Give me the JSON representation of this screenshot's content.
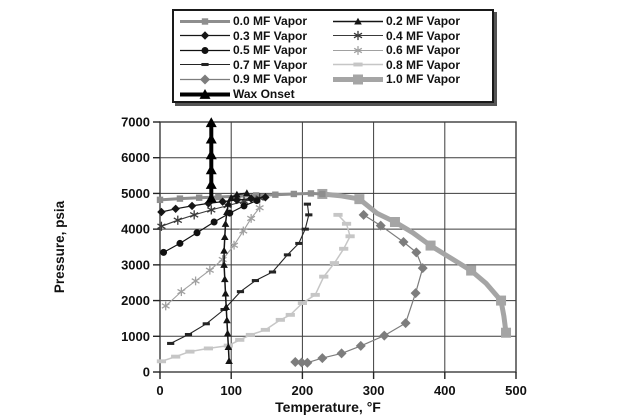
{
  "chart_data": {
    "type": "line",
    "title": "",
    "xlabel": "Temperature, °F",
    "ylabel": "Pressure, psia",
    "xlim": [
      0,
      500
    ],
    "ylim": [
      0,
      7000
    ],
    "xticks": [
      0,
      100,
      200,
      300,
      400,
      500
    ],
    "yticks": [
      0,
      1000,
      2000,
      3000,
      4000,
      5000,
      6000,
      7000
    ],
    "grid": true,
    "legend_position": "top-center",
    "series": [
      {
        "name": "0.0 MF Vapor",
        "marker": "square",
        "color": "#8e8e8e",
        "line_width": 3,
        "marker_size": 3.2,
        "marker_every": 1,
        "points": [
          [
            0,
            4820
          ],
          [
            28,
            4855
          ],
          [
            55,
            4880
          ],
          [
            82,
            4900
          ],
          [
            108,
            4920
          ],
          [
            135,
            4945
          ],
          [
            162,
            4965
          ],
          [
            188,
            4985
          ],
          [
            212,
            5000
          ],
          [
            228,
            4985
          ]
        ]
      },
      {
        "name": "0.2 MF Vapor",
        "marker": "triangle",
        "color": "#141414",
        "line_width": 1.5,
        "marker_size": 3.8,
        "marker_every": 1,
        "points": [
          [
            97,
            310
          ],
          [
            96,
            700
          ],
          [
            95,
            1080
          ],
          [
            94,
            1450
          ],
          [
            93,
            1820
          ],
          [
            92,
            2200
          ],
          [
            91,
            2600
          ],
          [
            90,
            3000
          ],
          [
            90,
            3400
          ],
          [
            91,
            3780
          ],
          [
            92,
            4150
          ],
          [
            94,
            4480
          ],
          [
            96,
            4720
          ],
          [
            100,
            4880
          ],
          [
            108,
            4970
          ],
          [
            122,
            5010
          ]
        ]
      },
      {
        "name": "0.3 MF Vapor",
        "marker": "diamond",
        "color": "#161616",
        "line_width": 1.2,
        "marker_size": 4.2,
        "marker_every": 1,
        "points": [
          [
            2,
            4480
          ],
          [
            22,
            4570
          ],
          [
            45,
            4650
          ],
          [
            68,
            4720
          ],
          [
            88,
            4770
          ],
          [
            108,
            4815
          ],
          [
            128,
            4855
          ],
          [
            148,
            4890
          ]
        ]
      },
      {
        "name": "0.4 MF Vapor",
        "marker": "asterisk",
        "color": "#3a3a3a",
        "line_width": 1.1,
        "marker_size": 4.6,
        "marker_every": 1,
        "points": [
          [
            2,
            4080
          ],
          [
            25,
            4250
          ],
          [
            48,
            4400
          ],
          [
            72,
            4540
          ],
          [
            95,
            4660
          ],
          [
            118,
            4780
          ],
          [
            140,
            4870
          ]
        ]
      },
      {
        "name": "0.5 MF Vapor",
        "marker": "circle",
        "color": "#111111",
        "line_width": 1.2,
        "marker_size": 3.5,
        "marker_every": 1,
        "points": [
          [
            5,
            3350
          ],
          [
            28,
            3600
          ],
          [
            52,
            3900
          ],
          [
            76,
            4200
          ],
          [
            98,
            4450
          ],
          [
            118,
            4650
          ],
          [
            136,
            4800
          ]
        ]
      },
      {
        "name": "0.6 MF Vapor",
        "marker": "asterisk",
        "color": "#a0a0a0",
        "line_width": 1.1,
        "marker_size": 4.4,
        "marker_every": 1,
        "points": [
          [
            8,
            1850
          ],
          [
            30,
            2250
          ],
          [
            50,
            2550
          ],
          [
            70,
            2850
          ],
          [
            88,
            3150
          ],
          [
            104,
            3550
          ],
          [
            117,
            3950
          ],
          [
            128,
            4300
          ],
          [
            140,
            4600
          ]
        ]
      },
      {
        "name": "0.7 MF Vapor",
        "marker": "dash",
        "color": "#242424",
        "line_width": 1.1,
        "marker_size": 3.6,
        "marker_every": 1,
        "points": [
          [
            15,
            800
          ],
          [
            40,
            1050
          ],
          [
            65,
            1350
          ],
          [
            90,
            1750
          ],
          [
            113,
            2250
          ],
          [
            134,
            2560
          ],
          [
            158,
            2800
          ],
          [
            179,
            3280
          ],
          [
            195,
            3600
          ],
          [
            204,
            4000
          ],
          [
            209,
            4400
          ],
          [
            207,
            4700
          ]
        ]
      },
      {
        "name": "0.8 MF Vapor",
        "marker": "rect",
        "color": "#c6c6c6",
        "line_width": 1.5,
        "marker_size": 4.6,
        "marker_every": 1,
        "points": [
          [
            2,
            300
          ],
          [
            22,
            430
          ],
          [
            42,
            570
          ],
          [
            68,
            660
          ],
          [
            96,
            740
          ],
          [
            112,
            900
          ],
          [
            127,
            1040
          ],
          [
            148,
            1180
          ],
          [
            169,
            1460
          ],
          [
            183,
            1600
          ],
          [
            200,
            1930
          ],
          [
            218,
            2160
          ],
          [
            230,
            2670
          ],
          [
            245,
            3050
          ],
          [
            258,
            3450
          ],
          [
            267,
            3800
          ],
          [
            262,
            4150
          ],
          [
            250,
            4400
          ]
        ]
      },
      {
        "name": "0.9 MF Vapor",
        "marker": "diamond",
        "color": "#7d7d7d",
        "line_width": 1.2,
        "marker_size": 5,
        "marker_every": 1,
        "points": [
          [
            190,
            280
          ],
          [
            199,
            265
          ],
          [
            207,
            260
          ],
          [
            228,
            390
          ],
          [
            255,
            520
          ],
          [
            282,
            730
          ],
          [
            315,
            1020
          ],
          [
            345,
            1370
          ],
          [
            359,
            2210
          ],
          [
            369,
            2910
          ],
          [
            360,
            3350
          ],
          [
            342,
            3640
          ],
          [
            310,
            4100
          ],
          [
            286,
            4400
          ]
        ]
      },
      {
        "name": "1.0 MF Vapor",
        "marker": "square",
        "color": "#a5a5a5",
        "line_width": 5,
        "marker_size": 5,
        "marker_every": 2,
        "points": [
          [
            228,
            4985
          ],
          [
            255,
            4930
          ],
          [
            280,
            4840
          ],
          [
            305,
            4440
          ],
          [
            330,
            4200
          ],
          [
            355,
            3900
          ],
          [
            380,
            3540
          ],
          [
            410,
            3170
          ],
          [
            437,
            2840
          ],
          [
            458,
            2480
          ],
          [
            479,
            2000
          ],
          [
            483,
            1560
          ],
          [
            486,
            1100
          ]
        ]
      },
      {
        "name": "Wax Onset",
        "marker": "triangle",
        "color": "#000000",
        "line_width": 4,
        "marker_size": 5.5,
        "marker_every": 1,
        "points": [
          [
            72,
            4870
          ],
          [
            72,
            5250
          ],
          [
            72,
            5660
          ],
          [
            72,
            6080
          ],
          [
            72,
            6520
          ],
          [
            72,
            6980
          ]
        ]
      }
    ]
  }
}
